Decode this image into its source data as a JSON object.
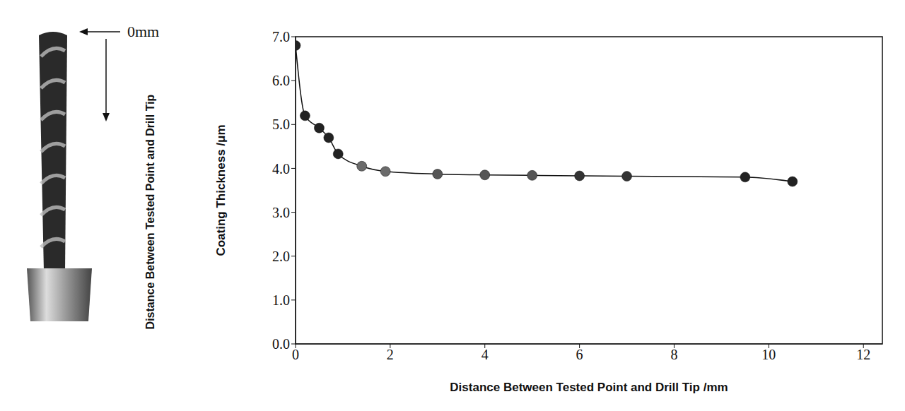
{
  "chart_data": {
    "type": "line",
    "x_label": "Distance Between Tested Point and Drill Tip /mm",
    "y_label": "Coating Thickness /μm",
    "annotations": [
      "0mm",
      "Distance Between Tested Point and Drill Tip"
    ],
    "x": [
      0,
      0.2,
      0.5,
      0.7,
      0.9,
      1.4,
      1.9,
      3,
      4,
      5,
      6,
      7,
      9.5,
      10.5
    ],
    "values": [
      6.8,
      5.2,
      4.92,
      4.7,
      4.33,
      4.05,
      3.93,
      3.87,
      3.85,
      3.84,
      3.83,
      3.82,
      3.8,
      3.7
    ],
    "colors": [
      "#222222",
      "#222222",
      "#222222",
      "#222222",
      "#222222",
      "#6b6b6b",
      "#6b6b6b",
      "#555555",
      "#555555",
      "#555555",
      "#333333",
      "#333333",
      "#222222",
      "#222222"
    ],
    "color": "#111111",
    "marker": "circle",
    "line_style": "solid",
    "xlim": [
      0,
      12.4
    ],
    "xticks": [
      0,
      2,
      4,
      6,
      8,
      10,
      12
    ],
    "ylim": [
      0,
      7
    ],
    "yticks": [
      {
        "value": 0,
        "label": "0.0"
      },
      {
        "value": 1,
        "label": "1.0"
      },
      {
        "value": 2,
        "label": "2.0"
      },
      {
        "value": 3,
        "label": "3.0"
      },
      {
        "value": 4,
        "label": "4.0"
      },
      {
        "value": 5,
        "label": "5.0"
      },
      {
        "value": 6,
        "label": "6.0"
      },
      {
        "value": 7,
        "label": "7.0"
      }
    ],
    "grid": false
  }
}
